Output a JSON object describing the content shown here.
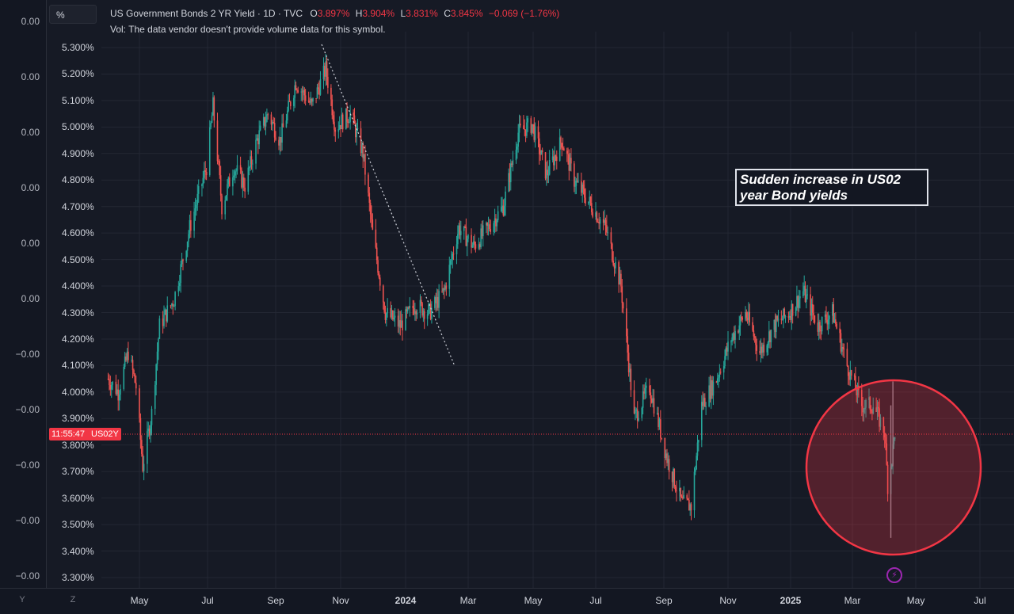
{
  "toolbar": {
    "scale_button_label": "%"
  },
  "legend": {
    "title": "US Government Bonds 2 YR Yield · 1D · TVC",
    "open_key": "O",
    "open_val": "3.897%",
    "high_key": "H",
    "high_val": "3.904%",
    "low_key": "L",
    "low_val": "3.831%",
    "close_key": "C",
    "close_val": "3.845%",
    "change": "−0.069 (−1.76%)",
    "volume_note": "Vol: The data vendor doesn't provide volume data for this symbol."
  },
  "left_scale_labels": [
    "0.00",
    "0.00",
    "0.00",
    "0.00",
    "0.00",
    "0.00",
    "−0.00",
    "−0.00",
    "−0.00",
    "−0.00",
    "−0.00"
  ],
  "price_tag": {
    "time": "11:55:47",
    "symbol": "US02Y"
  },
  "annotation": {
    "text": "Sudden increase in US02 year Bond yields"
  },
  "bottom_controls": {
    "left": "Y",
    "right": "Z"
  },
  "colors": {
    "up": "#26a69a",
    "down": "#ef5350",
    "accent_red": "#f23645",
    "highlight_circle": "#f23645"
  },
  "chart_data": {
    "type": "candlestick",
    "title": "US Government Bonds 2 YR Yield · 1D · TVC",
    "y_ticks": [
      "5.300%",
      "5.200%",
      "5.100%",
      "5.000%",
      "4.900%",
      "4.800%",
      "4.700%",
      "4.600%",
      "4.500%",
      "4.400%",
      "4.300%",
      "4.200%",
      "4.100%",
      "4.000%",
      "3.900%",
      "3.800%",
      "3.700%",
      "3.600%",
      "3.500%",
      "3.400%",
      "3.300%"
    ],
    "x_ticks": [
      "May",
      "Jul",
      "Sep",
      "Nov",
      "2024",
      "Mar",
      "May",
      "Jul",
      "Sep",
      "Nov",
      "2025",
      "Mar",
      "May",
      "Jul"
    ],
    "ylim": [
      3.27,
      5.33
    ],
    "last_close": 3.845,
    "grid": true,
    "path_points": [
      [
        "2023-04-03",
        4.05
      ],
      [
        "2023-04-12",
        4.0
      ],
      [
        "2023-04-21",
        4.15
      ],
      [
        "2023-04-28",
        4.02
      ],
      [
        "2023-05-04",
        3.72
      ],
      [
        "2023-05-12",
        3.92
      ],
      [
        "2023-05-19",
        4.25
      ],
      [
        "2023-06-01",
        4.35
      ],
      [
        "2023-06-15",
        4.62
      ],
      [
        "2023-06-30",
        4.85
      ],
      [
        "2023-07-06",
        5.08
      ],
      [
        "2023-07-14",
        4.7
      ],
      [
        "2023-07-25",
        4.85
      ],
      [
        "2023-08-04",
        4.78
      ],
      [
        "2023-08-15",
        4.95
      ],
      [
        "2023-08-25",
        5.05
      ],
      [
        "2023-09-05",
        4.95
      ],
      [
        "2023-09-20",
        5.17
      ],
      [
        "2023-10-05",
        5.08
      ],
      [
        "2023-10-18",
        5.22
      ],
      [
        "2023-10-27",
        5.0
      ],
      [
        "2023-11-10",
        5.05
      ],
      [
        "2023-11-22",
        4.9
      ],
      [
        "2023-12-01",
        4.6
      ],
      [
        "2023-12-13",
        4.3
      ],
      [
        "2023-12-27",
        4.25
      ],
      [
        "2024-01-10",
        4.33
      ],
      [
        "2024-01-24",
        4.3
      ],
      [
        "2024-02-07",
        4.38
      ],
      [
        "2024-02-21",
        4.62
      ],
      [
        "2024-03-06",
        4.55
      ],
      [
        "2024-03-20",
        4.62
      ],
      [
        "2024-04-03",
        4.7
      ],
      [
        "2024-04-17",
        4.98
      ],
      [
        "2024-04-30",
        5.01
      ],
      [
        "2024-05-14",
        4.82
      ],
      [
        "2024-05-29",
        4.95
      ],
      [
        "2024-06-10",
        4.8
      ],
      [
        "2024-06-24",
        4.72
      ],
      [
        "2024-07-10",
        4.62
      ],
      [
        "2024-07-24",
        4.4
      ],
      [
        "2024-08-05",
        3.9
      ],
      [
        "2024-08-19",
        4.02
      ],
      [
        "2024-09-04",
        3.75
      ],
      [
        "2024-09-18",
        3.58
      ],
      [
        "2024-09-27",
        3.57
      ],
      [
        "2024-10-07",
        3.95
      ],
      [
        "2024-10-21",
        4.05
      ],
      [
        "2024-11-04",
        4.2
      ],
      [
        "2024-11-18",
        4.3
      ],
      [
        "2024-12-02",
        4.15
      ],
      [
        "2024-12-16",
        4.25
      ],
      [
        "2024-12-31",
        4.3
      ],
      [
        "2025-01-13",
        4.38
      ],
      [
        "2025-01-27",
        4.25
      ],
      [
        "2025-02-10",
        4.3
      ],
      [
        "2025-02-24",
        4.1
      ],
      [
        "2025-03-10",
        3.95
      ],
      [
        "2025-03-21",
        3.95
      ],
      [
        "2025-04-01",
        3.85
      ],
      [
        "2025-04-04",
        3.65
      ],
      [
        "2025-04-08",
        3.75
      ],
      [
        "2025-04-11",
        3.85
      ]
    ],
    "annotations": [
      "Sudden increase in US02 year Bond yields"
    ]
  }
}
